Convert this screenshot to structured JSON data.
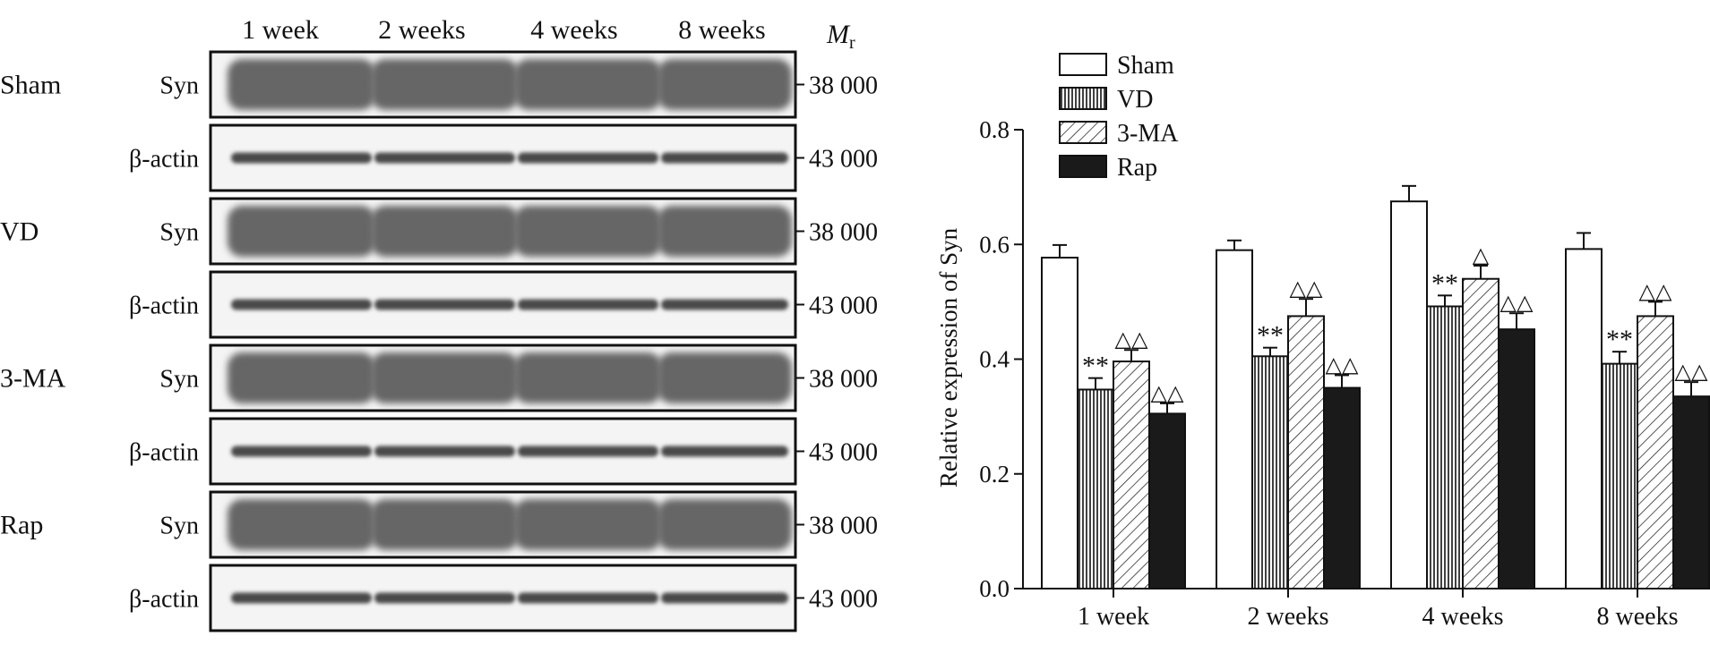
{
  "blot": {
    "columns": [
      "1 week",
      "2 weeks",
      "4 weeks",
      "8 weeks"
    ],
    "mr_label_main": "M",
    "mr_label_sub": "r",
    "groups": [
      {
        "name": "Sham",
        "rows": [
          {
            "protein": "Syn",
            "mr": "38 000"
          },
          {
            "protein": "β-actin",
            "mr": "43 000"
          }
        ]
      },
      {
        "name": "VD",
        "rows": [
          {
            "protein": "Syn",
            "mr": "38 000"
          },
          {
            "protein": "β-actin",
            "mr": "43 000"
          }
        ]
      },
      {
        "name": "3-MA",
        "rows": [
          {
            "protein": "Syn",
            "mr": "38 000"
          },
          {
            "protein": "β-actin",
            "mr": "43 000"
          }
        ]
      },
      {
        "name": "Rap",
        "rows": [
          {
            "protein": "Syn",
            "mr": "38 000"
          },
          {
            "protein": "β-actin",
            "mr": "43 000"
          }
        ]
      }
    ]
  },
  "chart_data": {
    "type": "bar",
    "title": "",
    "xlabel": "",
    "ylabel": "Relative expression of Syn",
    "ylim": [
      0.0,
      0.8
    ],
    "yticks": [
      "0.0",
      "0.2",
      "0.4",
      "0.6",
      "0.8"
    ],
    "categories": [
      "1 week",
      "2 weeks",
      "4 weeks",
      "8 weeks"
    ],
    "legend_position": "top-left",
    "series": [
      {
        "name": "Sham",
        "pattern": "open",
        "values": [
          0.577,
          0.59,
          0.675,
          0.592
        ],
        "errors": [
          0.022,
          0.017,
          0.027,
          0.028
        ],
        "annotations": [
          "",
          "",
          "",
          ""
        ]
      },
      {
        "name": "VD",
        "pattern": "vertical",
        "values": [
          0.347,
          0.405,
          0.492,
          0.392
        ],
        "errors": [
          0.02,
          0.015,
          0.019,
          0.021
        ],
        "annotations": [
          "**",
          "**",
          "**",
          "**"
        ]
      },
      {
        "name": "3-MA",
        "pattern": "diagonal",
        "values": [
          0.396,
          0.475,
          0.54,
          0.475
        ],
        "errors": [
          0.02,
          0.03,
          0.023,
          0.025
        ],
        "annotations": [
          "△△",
          "△△",
          "△",
          "△△"
        ]
      },
      {
        "name": "Rap",
        "pattern": "solid",
        "values": [
          0.305,
          0.35,
          0.452,
          0.335
        ],
        "errors": [
          0.018,
          0.022,
          0.028,
          0.025
        ],
        "annotations": [
          "△△",
          "△△",
          "△△",
          "△△"
        ]
      }
    ]
  }
}
